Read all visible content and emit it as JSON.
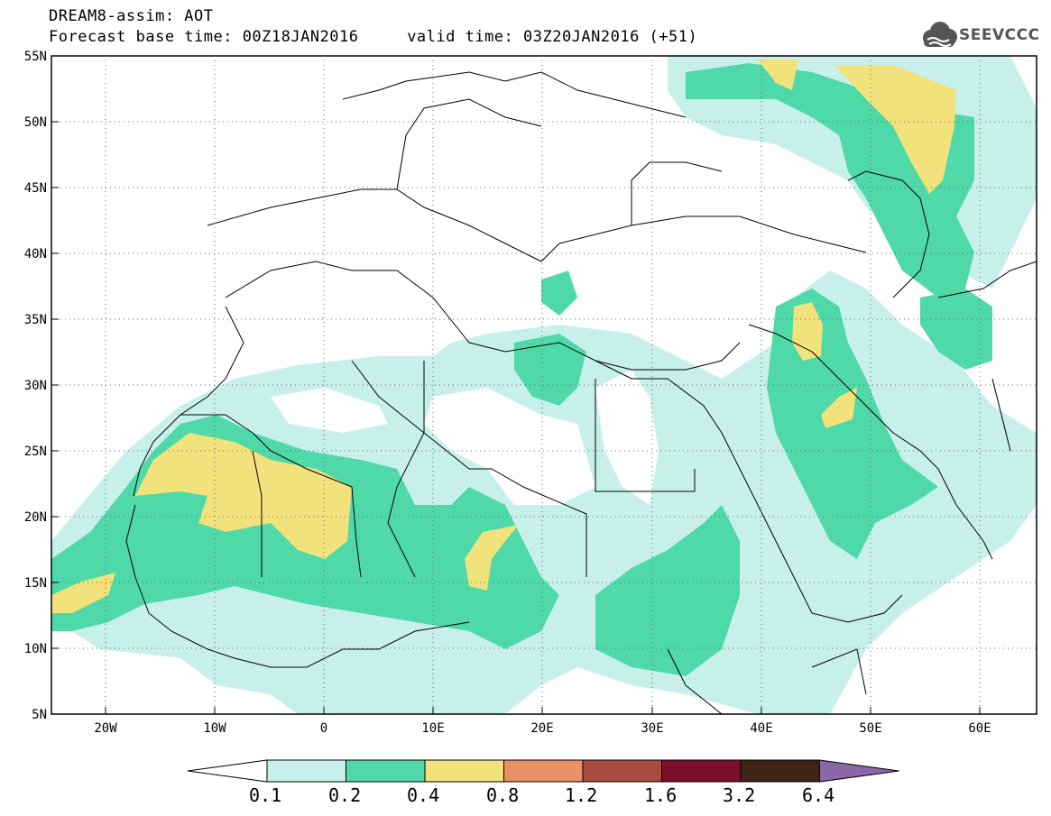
{
  "title": {
    "line1": "DREAM8-assim: AOT",
    "line2": "Forecast base time: 00Z18JAN2016     valid time: 03Z20JAN2016 (+51)"
  },
  "logo": {
    "text": "SEEVCCC",
    "icon": "cloud-icon"
  },
  "map": {
    "lat_labels": [
      "55N",
      "50N",
      "45N",
      "40N",
      "35N",
      "30N",
      "25N",
      "20N",
      "15N",
      "10N",
      "5N"
    ],
    "lon_labels": [
      "20W",
      "10W",
      "0",
      "10E",
      "20E",
      "30E",
      "40E",
      "50E",
      "60E"
    ]
  },
  "colorbar": {
    "labels": [
      "0.1",
      "0.2",
      "0.4",
      "0.8",
      "1.2",
      "1.6",
      "3.2",
      "6.4"
    ],
    "colors": [
      "#c8f0eb",
      "#50d9a8",
      "#f1e27b",
      "#e89066",
      "#a84c3f",
      "#7a0e2b",
      "#3d2414",
      "#8a68a8"
    ]
  }
}
